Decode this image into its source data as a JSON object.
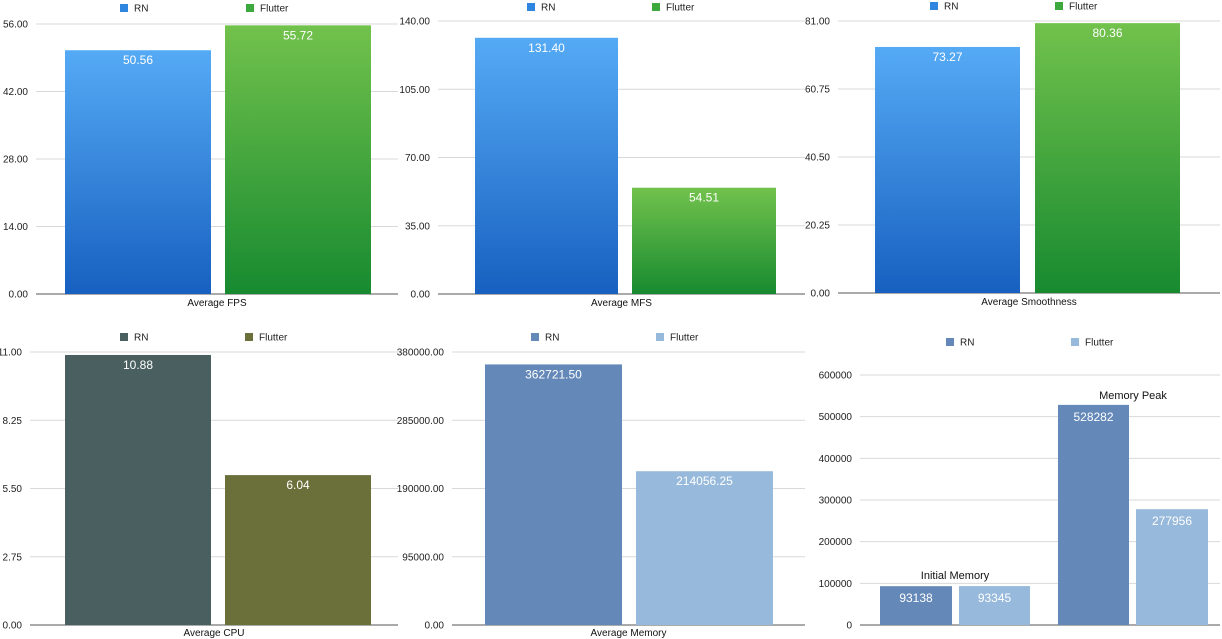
{
  "chart_data": [
    {
      "type": "bar",
      "xlabel": "Average FPS",
      "ylim": [
        0,
        56
      ],
      "yticks": [
        "0.00",
        "14.00",
        "28.00",
        "42.00",
        "56.00"
      ],
      "series": [
        {
          "name": "RN",
          "value": 50.56,
          "label": "50.56"
        },
        {
          "name": "Flutter",
          "value": 55.72,
          "label": "55.72"
        }
      ],
      "colors": [
        "#2e86e0",
        "#3da83d"
      ],
      "grid": "horizontal",
      "legend": "top"
    },
    {
      "type": "bar",
      "xlabel": "Average MFS",
      "ylim": [
        0,
        140
      ],
      "yticks": [
        "0.00",
        "35.00",
        "70.00",
        "105.00",
        "140.00"
      ],
      "series": [
        {
          "name": "RN",
          "value": 131.4,
          "label": "131.40"
        },
        {
          "name": "Flutter",
          "value": 54.51,
          "label": "54.51"
        }
      ],
      "colors": [
        "#2e86e0",
        "#3da83d"
      ],
      "grid": "horizontal",
      "legend": "top"
    },
    {
      "type": "bar",
      "xlabel": "Average Smoothness",
      "ylim": [
        0,
        81
      ],
      "yticks": [
        "0.00",
        "20.25",
        "40.50",
        "60.75",
        "81.00"
      ],
      "series": [
        {
          "name": "RN",
          "value": 73.27,
          "label": "73.27"
        },
        {
          "name": "Flutter",
          "value": 80.36,
          "label": "80.36"
        }
      ],
      "colors": [
        "#2e86e0",
        "#3da83d"
      ],
      "grid": "horizontal",
      "legend": "top"
    },
    {
      "type": "bar",
      "xlabel": "Average CPU",
      "ylim": [
        0,
        11
      ],
      "yticks": [
        "0.00",
        "2.75",
        "5.50",
        "8.25",
        "11.00"
      ],
      "series": [
        {
          "name": "RN",
          "value": 10.88,
          "label": "10.88"
        },
        {
          "name": "Flutter",
          "value": 6.04,
          "label": "6.04"
        }
      ],
      "colors": [
        "#4a5f5f",
        "#6b703a"
      ],
      "grid": "horizontal",
      "legend": "top"
    },
    {
      "type": "bar",
      "xlabel": "Average Memory",
      "ylim": [
        0,
        380000
      ],
      "yticks": [
        "0.00",
        "95000.00",
        "190000.00",
        "285000.00",
        "380000.00"
      ],
      "series": [
        {
          "name": "RN",
          "value": 362721.5,
          "label": "362721.50"
        },
        {
          "name": "Flutter",
          "value": 214056.25,
          "label": "214056.25"
        }
      ],
      "colors": [
        "#6489b8",
        "#97b9db"
      ],
      "grid": "horizontal",
      "legend": "top"
    },
    {
      "type": "bar",
      "categories": [
        "Initial Memory",
        "Memory Peak"
      ],
      "ylim": [
        0,
        600000
      ],
      "yticks": [
        "0",
        "100000",
        "200000",
        "300000",
        "400000",
        "500000",
        "600000"
      ],
      "series": [
        {
          "name": "RN",
          "values": [
            93138,
            528282
          ],
          "labels": [
            "93138",
            "528282"
          ]
        },
        {
          "name": "Flutter",
          "values": [
            93345,
            277956
          ],
          "labels": [
            "93345",
            "277956"
          ]
        }
      ],
      "colors": [
        "#6489b8",
        "#97b9db"
      ],
      "grid": "horizontal",
      "legend": "top"
    }
  ]
}
